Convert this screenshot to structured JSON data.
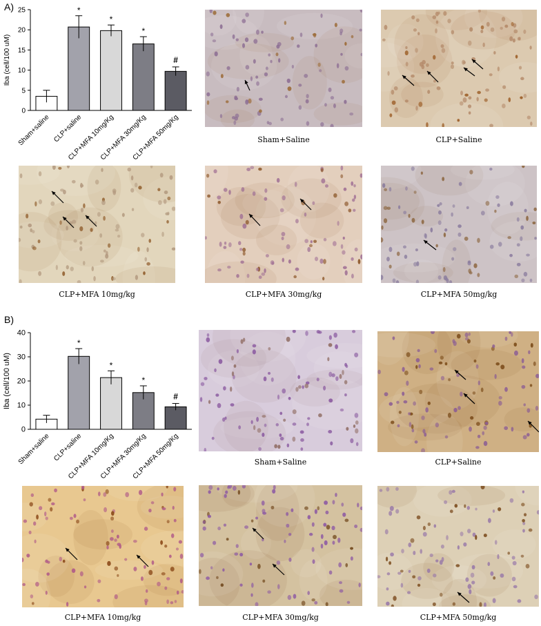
{
  "panels": [
    {
      "letter": "A)",
      "chart_data": {
        "type": "bar",
        "ylabel": "Iba (cell/100 uM)",
        "ylim": [
          0,
          25
        ],
        "yticks": [
          0,
          5,
          10,
          15,
          20,
          25
        ],
        "categories": [
          "Sham+saline",
          "CLP+saline",
          "CLP+MFA 10mg/Kg",
          "CLP+MFA 30mg/Kg",
          "CLP+MFA 50mg/Kg"
        ],
        "values": [
          3.5,
          20.7,
          19.8,
          16.5,
          9.7
        ],
        "errors": [
          1.5,
          2.8,
          1.4,
          1.8,
          1.1
        ],
        "significance": [
          "",
          "*",
          "*",
          "*",
          "#"
        ],
        "bar_colors": [
          "#ffffff",
          "#a2a2ab",
          "#d8d8d8",
          "#7d7d85",
          "#5b5b63"
        ]
      },
      "micrographs": [
        {
          "caption": "Sham+Saline",
          "tone": "#c8bcc0",
          "cell": "#8d6f94",
          "brown": "#9b6a36"
        },
        {
          "caption": "CLP+Saline",
          "tone": "#dccab0",
          "cell": "#b48a6a",
          "brown": "#9a5a22"
        },
        {
          "caption": "CLP+MFA 10mg/kg",
          "tone": "#e2d6bc",
          "cell": "#b39a80",
          "brown": "#8e5a28"
        },
        {
          "caption": "CLP+MFA 30mg/kg",
          "tone": "#e3cfbd",
          "cell": "#a07094",
          "brown": "#8a5426"
        },
        {
          "caption": "CLP+MFA 50mg/kg",
          "tone": "#cdc3c6",
          "cell": "#8a7c9e",
          "brown": "#8c6640"
        }
      ]
    },
    {
      "letter": "B)",
      "chart_data": {
        "type": "bar",
        "ylabel": "Iba (cell/100 uM)",
        "ylim": [
          0,
          40
        ],
        "yticks": [
          0,
          10,
          20,
          30,
          40
        ],
        "categories": [
          "Sham+saline",
          "CLP+saline",
          "CLP+MFA 10mg/Kg",
          "CLP+MFA 30mg/Kg",
          "CLP+MFA 50mg/Kg"
        ],
        "values": [
          4.2,
          30.2,
          21.4,
          15.2,
          9.3
        ],
        "errors": [
          1.6,
          3.2,
          2.8,
          2.8,
          1.4
        ],
        "significance": [
          "",
          "*",
          "*",
          "*",
          "#"
        ],
        "bar_colors": [
          "#ffffff",
          "#a2a2ab",
          "#d8d8d8",
          "#7d7d85",
          "#5b5b63"
        ]
      },
      "micrographs": [
        {
          "caption": "Sham+Saline",
          "tone": "#d8ccdc",
          "cell": "#8a5aa0",
          "brown": "#8e6a60"
        },
        {
          "caption": "CLP+Saline",
          "tone": "#cfb084",
          "cell": "#8c5e94",
          "brown": "#7a4a18"
        },
        {
          "caption": "CLP+MFA 10mg/kg",
          "tone": "#e8c890",
          "cell": "#b05a88",
          "brown": "#8a4818"
        },
        {
          "caption": "CLP+MFA 30mg/kg",
          "tone": "#d4c2a0",
          "cell": "#8c58a4",
          "brown": "#6e4418"
        },
        {
          "caption": "CLP+MFA 50mg/kg",
          "tone": "#ddd0b6",
          "cell": "#9878a8",
          "brown": "#7a4a1c"
        }
      ]
    }
  ]
}
